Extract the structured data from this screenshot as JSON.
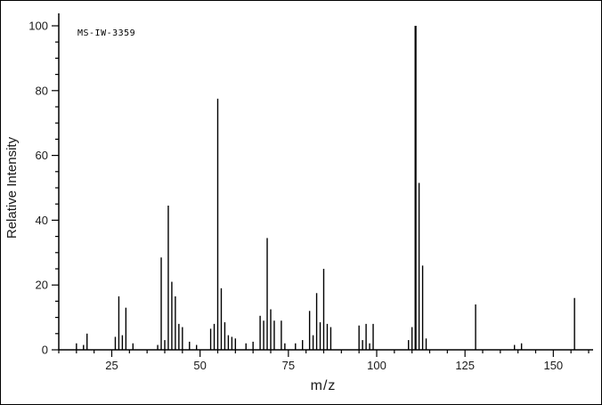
{
  "chart_data": {
    "type": "bar",
    "subtype": "mass-spectrum-stick-plot",
    "title": "",
    "annotation": "MS-IW-3359",
    "xlabel": "m/z",
    "ylabel": "Relative Intensity",
    "xlim": [
      10,
      160
    ],
    "ylim": [
      0,
      100
    ],
    "x_major_ticks": [
      25,
      50,
      75,
      100,
      125,
      150
    ],
    "x_minor_step": 5,
    "y_major_ticks": [
      0,
      20,
      40,
      60,
      80,
      100
    ],
    "y_minor_step": 5,
    "grid": false,
    "legend": "none",
    "line_color": "#000000",
    "background_color": "#ffffff",
    "peaks": [
      [
        15,
        2
      ],
      [
        17,
        1.5
      ],
      [
        18,
        5
      ],
      [
        26,
        4
      ],
      [
        27,
        16.5
      ],
      [
        28,
        4.5
      ],
      [
        29,
        13
      ],
      [
        31,
        2
      ],
      [
        38,
        1.5
      ],
      [
        39,
        28.5
      ],
      [
        40,
        3
      ],
      [
        41,
        44.5
      ],
      [
        42,
        21
      ],
      [
        43,
        16.5
      ],
      [
        44,
        8
      ],
      [
        45,
        7
      ],
      [
        47,
        2.5
      ],
      [
        49,
        1.5
      ],
      [
        53,
        6.5
      ],
      [
        54,
        8
      ],
      [
        55,
        77.5
      ],
      [
        56,
        19
      ],
      [
        57,
        8.5
      ],
      [
        58,
        4.5
      ],
      [
        59,
        4
      ],
      [
        60,
        3.5
      ],
      [
        63,
        2
      ],
      [
        65,
        2.5
      ],
      [
        67,
        10.5
      ],
      [
        68,
        9
      ],
      [
        69,
        34.5
      ],
      [
        70,
        12.5
      ],
      [
        71,
        9
      ],
      [
        73,
        9
      ],
      [
        74,
        2
      ],
      [
        77,
        2
      ],
      [
        79,
        3
      ],
      [
        81,
        12
      ],
      [
        82,
        4.5
      ],
      [
        83,
        17.5
      ],
      [
        84,
        8.5
      ],
      [
        85,
        25
      ],
      [
        86,
        8
      ],
      [
        87,
        7
      ],
      [
        95,
        7.5
      ],
      [
        96,
        3
      ],
      [
        97,
        8
      ],
      [
        98,
        2
      ],
      [
        99,
        8
      ],
      [
        109,
        3
      ],
      [
        110,
        7
      ],
      [
        111,
        100
      ],
      [
        112,
        51.5
      ],
      [
        113,
        26
      ],
      [
        114,
        3.5
      ],
      [
        128,
        14
      ],
      [
        139,
        1.5
      ],
      [
        141,
        2
      ],
      [
        156,
        16
      ]
    ]
  }
}
